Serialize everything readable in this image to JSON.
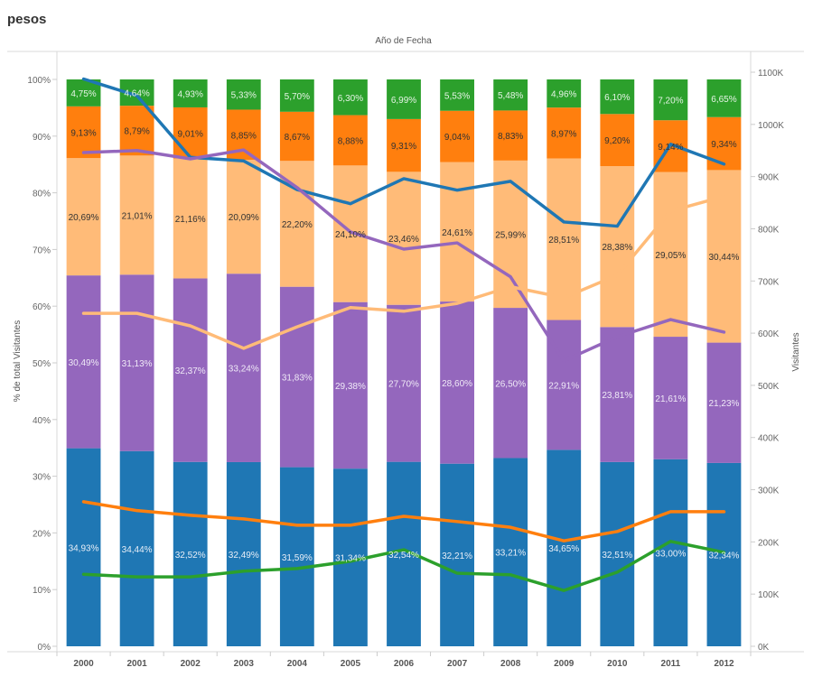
{
  "title": "pesos",
  "x_header": "Año de Fecha",
  "chart_data": {
    "type": "bar",
    "subtype": "stacked-100-percent-bar-with-dual-axis-lines",
    "title": "pesos",
    "column_header": "Año de Fecha",
    "categories": [
      "2000",
      "2001",
      "2002",
      "2003",
      "2004",
      "2005",
      "2006",
      "2007",
      "2008",
      "2009",
      "2010",
      "2011",
      "2012"
    ],
    "ylabel": "% de total Visitantes",
    "ylim": [
      0,
      100
    ],
    "yticks": [
      "0%",
      "10%",
      "20%",
      "30%",
      "40%",
      "50%",
      "60%",
      "70%",
      "80%",
      "90%",
      "100%"
    ],
    "y2label": "Visitantes",
    "y2lim": [
      0,
      1100000
    ],
    "y2ticks": [
      "0K",
      "100K",
      "200K",
      "300K",
      "400K",
      "500K",
      "600K",
      "700K",
      "800K",
      "900K",
      "1000K",
      "1100K"
    ],
    "grid": false,
    "bar_series": [
      {
        "name": "Series 1 (blue)",
        "color": "#1f77b4",
        "label_color": "#e8eef7",
        "values": [
          34.93,
          34.44,
          32.52,
          32.49,
          31.59,
          31.34,
          32.54,
          32.21,
          33.21,
          34.65,
          32.51,
          33.0,
          32.34
        ],
        "labels": [
          "34,93%",
          "34,44%",
          "32,52%",
          "32,49%",
          "31,59%",
          "31,34%",
          "32,54%",
          "32,21%",
          "33,21%",
          "34,65%",
          "32,51%",
          "33,00%",
          "32,34%"
        ]
      },
      {
        "name": "Series 2 (purple)",
        "color": "#9467bd",
        "label_color": "#f0eaf7",
        "values": [
          30.49,
          31.13,
          32.37,
          33.24,
          31.83,
          29.38,
          27.7,
          28.6,
          26.5,
          22.91,
          23.81,
          21.61,
          21.23
        ],
        "labels": [
          "30,49%",
          "31,13%",
          "32,37%",
          "33,24%",
          "31,83%",
          "29,38%",
          "27,70%",
          "28,60%",
          "26,50%",
          "22,91%",
          "23,81%",
          "21,61%",
          "21,23%"
        ]
      },
      {
        "name": "Series 3 (light orange)",
        "color": "#ffbb78",
        "label_color": "#333333",
        "values": [
          20.69,
          21.01,
          21.16,
          20.09,
          22.2,
          24.1,
          23.46,
          24.61,
          25.99,
          28.51,
          28.38,
          29.05,
          30.44
        ],
        "labels": [
          "20,69%",
          "21,01%",
          "21,16%",
          "20,09%",
          "22,20%",
          "24,10%",
          "23,46%",
          "24,61%",
          "25,99%",
          "28,51%",
          "28,38%",
          "29,05%",
          "30,44%"
        ]
      },
      {
        "name": "Series 4 (orange)",
        "color": "#ff7f0e",
        "label_color": "#333333",
        "values": [
          9.13,
          8.79,
          9.01,
          8.85,
          8.67,
          8.88,
          9.31,
          9.04,
          8.83,
          8.97,
          9.2,
          9.14,
          9.34
        ],
        "labels": [
          "9,13%",
          "8,79%",
          "9,01%",
          "8,85%",
          "8,67%",
          "8,88%",
          "9,31%",
          "9,04%",
          "8,83%",
          "8,97%",
          "9,20%",
          "9,14%",
          "9,34%"
        ]
      },
      {
        "name": "Series 5 (green)",
        "color": "#2ca02c",
        "label_color": "#e6f4e6",
        "values": [
          4.75,
          4.64,
          4.93,
          5.33,
          5.7,
          6.3,
          6.99,
          5.53,
          5.48,
          4.96,
          6.1,
          7.2,
          6.65
        ],
        "labels": [
          "4,75%",
          "4,64%",
          "4,93%",
          "5,33%",
          "5,70%",
          "6,30%",
          "6,99%",
          "5,53%",
          "5,48%",
          "4,96%",
          "6,10%",
          "7,20%",
          "6,65%"
        ]
      }
    ],
    "line_series": [
      {
        "name": "Series 1 (blue) Visitantes",
        "color": "#1f77b4",
        "values": [
          1087000,
          1055000,
          937000,
          930000,
          875000,
          848000,
          896000,
          874000,
          891000,
          813000,
          805000,
          962000,
          924000
        ]
      },
      {
        "name": "Series 2 (purple) Visitantes",
        "color": "#9467bd",
        "values": [
          946000,
          950000,
          934000,
          951000,
          879000,
          794000,
          761000,
          773000,
          708000,
          547000,
          593000,
          626000,
          602000
        ]
      },
      {
        "name": "Series 3 (light orange) Visitantes",
        "color": "#ffbb78",
        "values": [
          638000,
          638000,
          614000,
          571000,
          612000,
          649000,
          642000,
          657000,
          689000,
          668000,
          711000,
          834000,
          862000
        ]
      },
      {
        "name": "Series 4 (orange) Visitantes",
        "color": "#ff7f0e",
        "values": [
          277000,
          260000,
          251000,
          244000,
          232000,
          232000,
          249000,
          239000,
          228000,
          202000,
          220000,
          258000,
          258000
        ]
      },
      {
        "name": "Series 5 (green) Visitantes",
        "color": "#2ca02c",
        "values": [
          138000,
          133000,
          133000,
          144000,
          149000,
          163000,
          185000,
          140000,
          137000,
          107000,
          142000,
          201000,
          180000
        ]
      }
    ]
  }
}
